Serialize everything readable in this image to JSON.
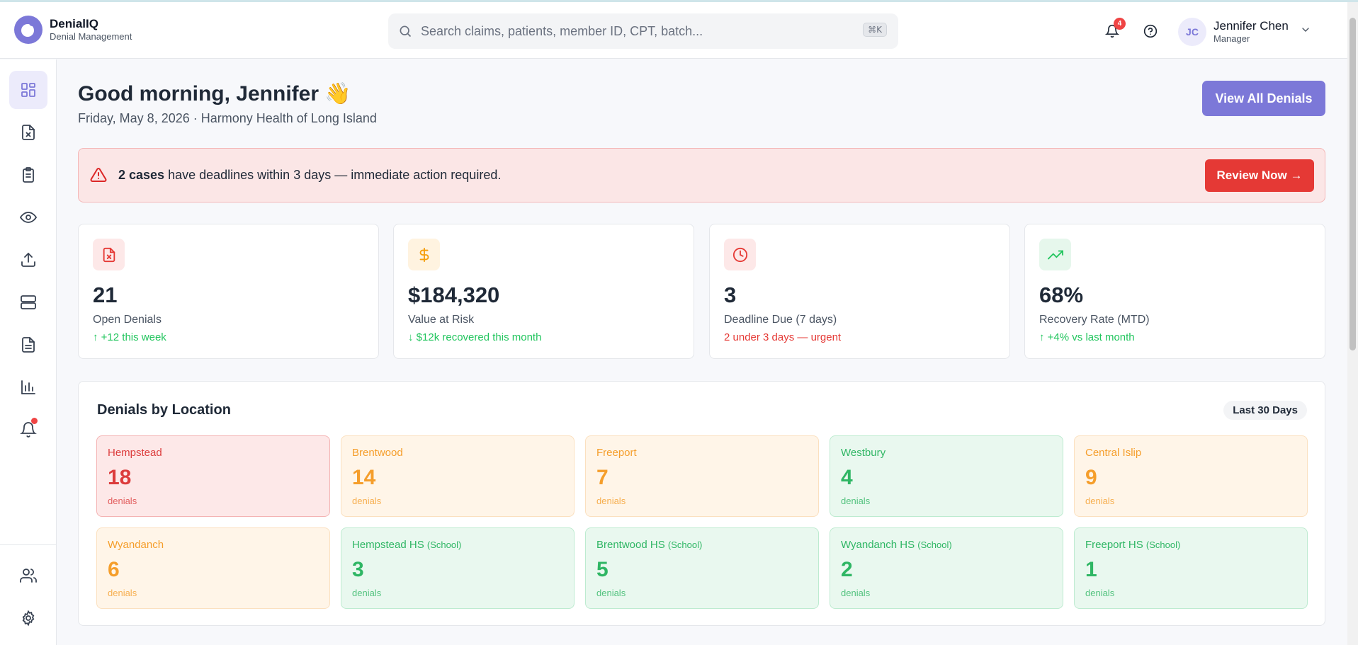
{
  "app": {
    "name": "DenialIQ",
    "subtitle": "Denial Management"
  },
  "search": {
    "placeholder": "Search claims, patients, member ID, CPT, batch...",
    "shortcut": "⌘K"
  },
  "header": {
    "notification_count": "4",
    "user_initials": "JC",
    "user_name": "Jennifer Chen",
    "user_role": "Manager"
  },
  "sidebar": {
    "items": [
      {
        "icon": "dashboard-icon",
        "active": true
      },
      {
        "icon": "file-x-icon"
      },
      {
        "icon": "clipboard-list-icon"
      },
      {
        "icon": "eye-icon"
      },
      {
        "icon": "upload-icon"
      },
      {
        "icon": "server-icon"
      },
      {
        "icon": "file-text-icon"
      },
      {
        "icon": "bar-chart-icon"
      },
      {
        "icon": "bell-icon",
        "dot": true
      },
      {
        "icon": "users-icon"
      },
      {
        "icon": "settings-icon"
      }
    ]
  },
  "page": {
    "greeting": "Good morning, Jennifer 👋",
    "subline": "Friday, May 8, 2026 · Harmony Health of Long Island",
    "view_all_label": "View All Denials"
  },
  "alert": {
    "bold": "2 cases",
    "text": " have deadlines within 3 days — immediate action required.",
    "button": "Review Now →"
  },
  "stats": [
    {
      "value": "21",
      "label": "Open Denials",
      "sub": "↑ +12 this week",
      "tone": "green",
      "icon": "file-x-icon",
      "icon_bg": "#fde8e8",
      "icon_color": "#e53935"
    },
    {
      "value": "$184,320",
      "label": "Value at Risk",
      "sub": "↓ $12k recovered this month",
      "tone": "green",
      "icon": "dollar-icon",
      "icon_bg": "#fff3e0",
      "icon_color": "#f59e0b"
    },
    {
      "value": "3",
      "label": "Deadline Due (7 days)",
      "sub": "2 under 3 days — urgent",
      "tone": "red",
      "icon": "clock-icon",
      "icon_bg": "#fde8e8",
      "icon_color": "#e53935"
    },
    {
      "value": "68%",
      "label": "Recovery Rate (MTD)",
      "sub": "↑ +4% vs last month",
      "tone": "green",
      "icon": "trending-up-icon",
      "icon_bg": "#e6f7ec",
      "icon_color": "#22c55e"
    }
  ],
  "locations": {
    "title": "Denials by Location",
    "range": "Last 30 Days",
    "unit": "denials",
    "items": [
      {
        "name": "Hempstead",
        "tag": "",
        "count": "18",
        "level": "red"
      },
      {
        "name": "Brentwood",
        "tag": "",
        "count": "14",
        "level": "orange"
      },
      {
        "name": "Freeport",
        "tag": "",
        "count": "7",
        "level": "orange"
      },
      {
        "name": "Westbury",
        "tag": "",
        "count": "4",
        "level": "green"
      },
      {
        "name": "Central Islip",
        "tag": "",
        "count": "9",
        "level": "orange"
      },
      {
        "name": "Wyandanch",
        "tag": "",
        "count": "6",
        "level": "orange"
      },
      {
        "name": "Hempstead HS",
        "tag": "(School)",
        "count": "3",
        "level": "green"
      },
      {
        "name": "Brentwood HS",
        "tag": "(School)",
        "count": "5",
        "level": "green"
      },
      {
        "name": "Wyandanch HS",
        "tag": "(School)",
        "count": "2",
        "level": "green"
      },
      {
        "name": "Freeport HS",
        "tag": "(School)",
        "count": "1",
        "level": "green"
      }
    ]
  }
}
